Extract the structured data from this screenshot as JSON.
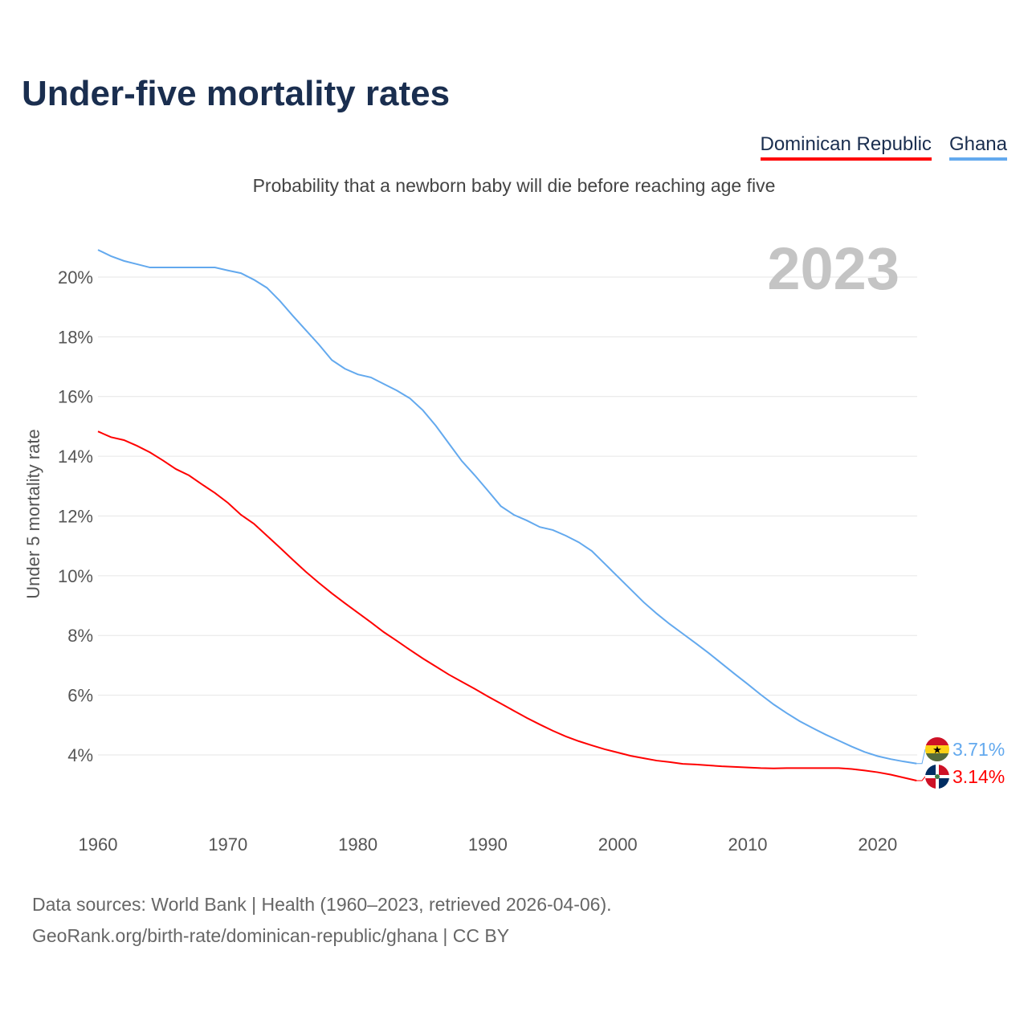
{
  "title": "Under-five mortality rates",
  "subtitle": "Probability that a newborn baby will die before reaching age five",
  "year_label": "2023",
  "source_line1": "Data sources: World Bank | Health (1960–2023, retrieved 2026-04-06).",
  "source_line2": "GeoRank.org/birth-rate/dominican-republic/ghana | CC BY",
  "chart_data": {
    "type": "line",
    "title": "Under-five mortality rates",
    "xlabel": "",
    "ylabel": "Under 5 mortality rate",
    "xlim": [
      1960,
      2023
    ],
    "ylim": [
      0,
      20.9
    ],
    "x_ticks": [
      1960,
      1970,
      1980,
      1990,
      2000,
      2010,
      2020
    ],
    "y_ticks": [
      4,
      6,
      8,
      10,
      12,
      14,
      16,
      18,
      20
    ],
    "y_tick_labels": [
      "4%",
      "6%",
      "8%",
      "10%",
      "12%",
      "14%",
      "16%",
      "18%",
      "20%"
    ],
    "grid": true,
    "legend": "top-right",
    "series": [
      {
        "name": "Dominican Republic",
        "color": "#ff0000",
        "end_label": "3.14%",
        "flag": "dominican-republic-flag-icon",
        "values": [
          14.83,
          14.64,
          14.54,
          14.35,
          14.13,
          13.86,
          13.57,
          13.36,
          13.06,
          12.77,
          12.44,
          12.04,
          11.74,
          11.34,
          10.94,
          10.53,
          10.13,
          9.76,
          9.41,
          9.08,
          8.76,
          8.44,
          8.11,
          7.82,
          7.52,
          7.23,
          6.96,
          6.69,
          6.45,
          6.21,
          5.96,
          5.72,
          5.48,
          5.24,
          5.02,
          4.81,
          4.62,
          4.46,
          4.32,
          4.19,
          4.08,
          3.97,
          3.89,
          3.81,
          3.76,
          3.7,
          3.68,
          3.65,
          3.62,
          3.6,
          3.58,
          3.56,
          3.55,
          3.56,
          3.56,
          3.56,
          3.56,
          3.56,
          3.53,
          3.48,
          3.42,
          3.34,
          3.24,
          3.14
        ]
      },
      {
        "name": "Ghana",
        "color": "#63a9ee",
        "end_label": "3.71%",
        "flag": "ghana-flag-icon",
        "values": [
          20.91,
          20.7,
          20.54,
          20.43,
          20.32,
          20.32,
          20.32,
          20.32,
          20.32,
          20.32,
          20.22,
          20.13,
          19.91,
          19.64,
          19.2,
          18.7,
          18.22,
          17.74,
          17.22,
          16.93,
          16.74,
          16.64,
          16.42,
          16.2,
          15.94,
          15.54,
          15.02,
          14.43,
          13.84,
          13.36,
          12.85,
          12.33,
          12.04,
          11.85,
          11.63,
          11.53,
          11.34,
          11.12,
          10.83,
          10.4,
          9.97,
          9.54,
          9.11,
          8.73,
          8.38,
          8.06,
          7.74,
          7.41,
          7.06,
          6.71,
          6.37,
          6.02,
          5.69,
          5.4,
          5.13,
          4.9,
          4.68,
          4.48,
          4.28,
          4.1,
          3.96,
          3.86,
          3.78,
          3.71
        ]
      }
    ],
    "x_start": 1960
  }
}
